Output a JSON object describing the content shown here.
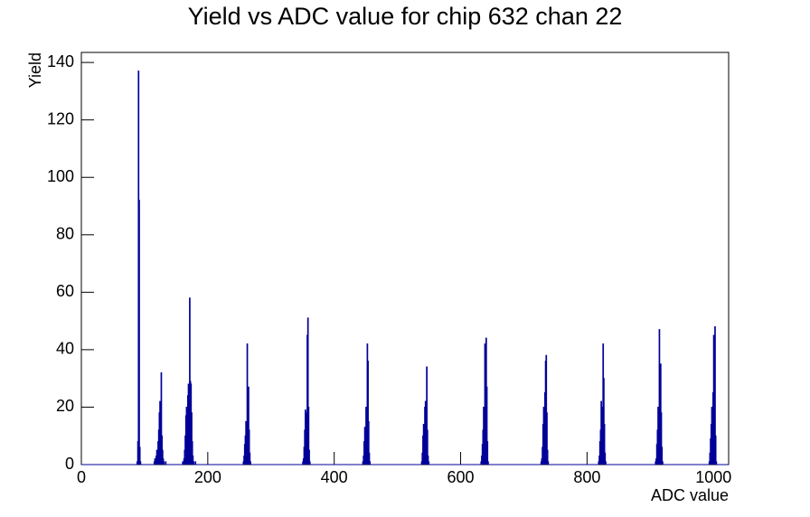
{
  "chart_data": {
    "type": "histogram",
    "title": "Yield vs ADC value for chip 632 chan 22",
    "x_label": "ADC value",
    "y_label": "Yield",
    "color": "#000099",
    "xlim": [
      0,
      1024
    ],
    "ylim": [
      0,
      143.5
    ],
    "xticks": [
      0,
      200,
      400,
      600,
      800,
      1000
    ],
    "yticks": [
      0,
      20,
      40,
      60,
      80,
      100,
      120,
      140
    ],
    "bins": [
      0,
      88,
      89,
      90,
      91,
      92,
      93,
      94,
      115,
      116,
      117,
      118,
      119,
      120,
      121,
      122,
      123,
      124,
      125,
      126,
      127,
      128,
      129,
      130,
      131,
      132,
      133,
      134,
      135,
      160,
      161,
      162,
      163,
      164,
      165,
      166,
      167,
      168,
      169,
      170,
      171,
      172,
      173,
      174,
      175,
      176,
      177,
      178,
      179,
      180,
      181,
      182,
      256,
      257,
      258,
      259,
      260,
      261,
      262,
      263,
      264,
      265,
      266,
      267,
      268,
      350,
      351,
      352,
      353,
      354,
      355,
      356,
      357,
      358,
      359,
      360,
      361,
      362,
      445,
      446,
      447,
      448,
      449,
      450,
      451,
      452,
      453,
      454,
      455,
      456,
      457,
      538,
      539,
      540,
      541,
      542,
      543,
      544,
      545,
      546,
      547,
      548,
      549,
      550,
      632,
      633,
      634,
      635,
      636,
      637,
      638,
      639,
      640,
      641,
      642,
      643,
      644,
      727,
      728,
      729,
      730,
      731,
      732,
      733,
      734,
      735,
      736,
      737,
      738,
      739,
      818,
      819,
      820,
      821,
      822,
      823,
      824,
      825,
      826,
      827,
      828,
      829,
      830,
      908,
      909,
      910,
      911,
      912,
      913,
      914,
      915,
      916,
      917,
      918,
      919,
      920,
      993,
      994,
      995,
      996,
      997,
      998,
      999,
      1000,
      1001,
      1002,
      1003,
      1004,
      1005,
      1024
    ],
    "counts": [
      0,
      1,
      8,
      137,
      92,
      6,
      1,
      0,
      1,
      2,
      0,
      3,
      5,
      2,
      8,
      12,
      18,
      22,
      14,
      32,
      10,
      5,
      2,
      1,
      0,
      0,
      1,
      0,
      0,
      1,
      0,
      2,
      5,
      10,
      17,
      20,
      16,
      24,
      28,
      22,
      58,
      29,
      28,
      18,
      8,
      3,
      1,
      0,
      0,
      1,
      0,
      0,
      1,
      3,
      7,
      10,
      15,
      12,
      42,
      20,
      27,
      12,
      4,
      1,
      0,
      1,
      2,
      6,
      12,
      19,
      17,
      18,
      45,
      51,
      20,
      5,
      1,
      0,
      1,
      3,
      8,
      13,
      10,
      20,
      17,
      42,
      36,
      15,
      4,
      1,
      0,
      1,
      4,
      10,
      14,
      8,
      20,
      22,
      18,
      34,
      12,
      3,
      1,
      0,
      1,
      3,
      7,
      12,
      20,
      18,
      42,
      25,
      44,
      27,
      8,
      1,
      0,
      1,
      2,
      6,
      14,
      20,
      16,
      25,
      36,
      38,
      18,
      5,
      1,
      0,
      1,
      3,
      8,
      12,
      22,
      20,
      18,
      42,
      30,
      14,
      4,
      1,
      0,
      1,
      2,
      7,
      12,
      20,
      15,
      47,
      28,
      35,
      18,
      6,
      1,
      0,
      1,
      4,
      9,
      14,
      20,
      16,
      25,
      45,
      20,
      48,
      10,
      1,
      0
    ]
  }
}
